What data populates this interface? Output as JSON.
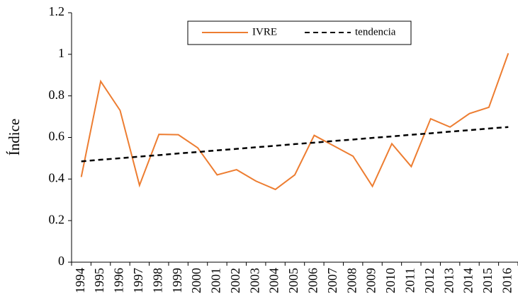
{
  "chart_data": {
    "type": "line",
    "ylabel": "Índice",
    "categories": [
      "1994",
      "1995",
      "1996",
      "1997",
      "1998",
      "1999",
      "2000",
      "2001",
      "2002",
      "2003",
      "2004",
      "2005",
      "2006",
      "2007",
      "2008",
      "2009",
      "2010",
      "2011",
      "2012",
      "2013",
      "2014",
      "2015",
      "2016"
    ],
    "series": [
      {
        "name": "IVRE",
        "color": "#ed7d31",
        "dashed": false,
        "values": [
          0.41,
          0.87,
          0.73,
          0.37,
          0.615,
          0.613,
          0.55,
          0.42,
          0.445,
          0.39,
          0.35,
          0.42,
          0.61,
          0.56,
          0.51,
          0.365,
          0.57,
          0.46,
          0.69,
          0.65,
          0.715,
          0.745,
          1.005
        ]
      },
      {
        "name": "tendencia",
        "color": "#000000",
        "dashed": true,
        "values": [
          0.485,
          0.493,
          0.5,
          0.508,
          0.515,
          0.523,
          0.53,
          0.538,
          0.545,
          0.553,
          0.56,
          0.568,
          0.575,
          0.583,
          0.59,
          0.598,
          0.605,
          0.613,
          0.62,
          0.628,
          0.635,
          0.643,
          0.65
        ]
      }
    ],
    "ylim": [
      0,
      1.2
    ],
    "yticks": [
      0,
      0.2,
      0.4,
      0.6,
      0.8,
      1,
      1.2
    ],
    "grid": false
  }
}
